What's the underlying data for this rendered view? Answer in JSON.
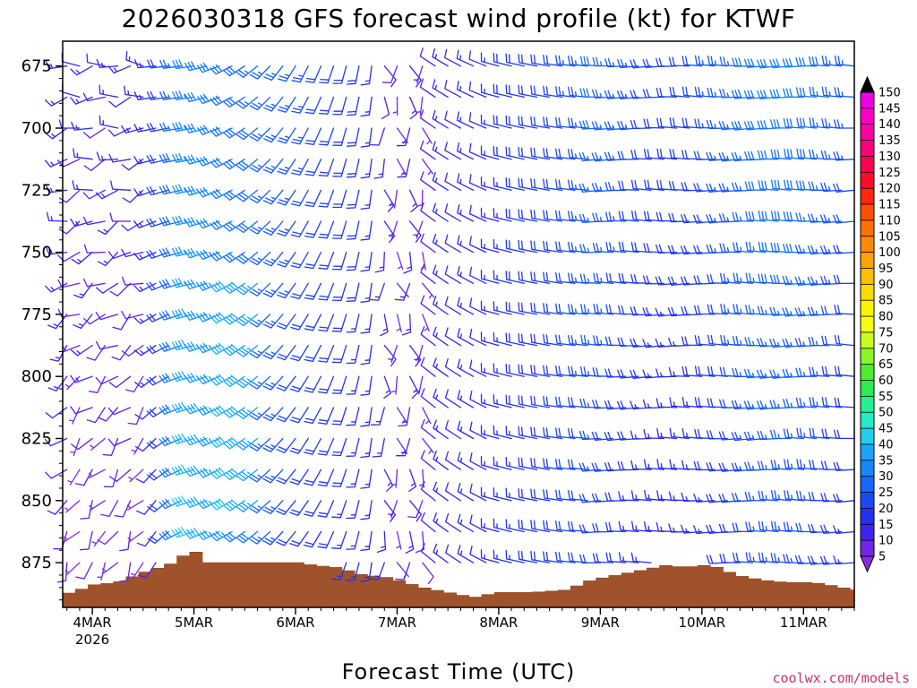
{
  "chart_data": {
    "type": "wind-barb-profile",
    "title": "2026030318 GFS forecast wind profile (kt) for KTWF",
    "xlabel": "Forecast Time (UTC)",
    "ylabel": "",
    "units": "kt",
    "credit": "coolwx.com/models",
    "ylim": [
      665,
      893
    ],
    "time_range_hours": [
      -1,
      186
    ],
    "y_ticks": [
      675,
      700,
      725,
      750,
      775,
      800,
      825,
      850,
      875
    ],
    "x_ticks": [
      {
        "hour": 6,
        "label": "4MAR",
        "sublabel": "2026"
      },
      {
        "hour": 30,
        "label": "5MAR"
      },
      {
        "hour": 54,
        "label": "6MAR"
      },
      {
        "hour": 78,
        "label": "7MAR"
      },
      {
        "hour": 102,
        "label": "8MAR"
      },
      {
        "hour": 126,
        "label": "9MAR"
      },
      {
        "hour": 150,
        "label": "10MAR"
      },
      {
        "hour": 174,
        "label": "11MAR"
      }
    ],
    "pressure_levels": [
      675,
      687.5,
      700,
      712.5,
      725,
      737.5,
      750,
      762.5,
      775,
      787.5,
      800,
      812.5,
      825,
      837.5,
      850,
      862.5,
      875,
      887.5
    ],
    "time_step_hours": 3,
    "wind_regimes": [
      {
        "period": "4MAR 00Z-12Z",
        "direction": "variable W/SW",
        "speed_kt": "5-15"
      },
      {
        "period": "4MAR 18Z-5MAR 06Z",
        "direction": "W",
        "speed_kt": "25-50"
      },
      {
        "period": "5MAR-6MAR",
        "direction": "SW to SSW",
        "speed_kt": "25-50"
      },
      {
        "period": "7MAR",
        "direction": "S, light",
        "speed_kt": "5-20"
      },
      {
        "period": "7MAR 12Z-8MAR",
        "direction": "NW to W",
        "speed_kt": "10-30"
      },
      {
        "period": "9MAR-11MAR",
        "direction": "W",
        "speed_kt": "20-40"
      }
    ],
    "colorbar": {
      "min": 5,
      "max": 150,
      "step": 5,
      "labels": [
        150,
        145,
        140,
        135,
        130,
        125,
        120,
        115,
        110,
        105,
        100,
        95,
        90,
        85,
        80,
        75,
        70,
        65,
        60,
        55,
        50,
        45,
        40,
        35,
        30,
        25,
        20,
        15,
        10,
        5
      ]
    },
    "terrain": [
      {
        "hour": -1,
        "p": 888
      },
      {
        "hour": 3,
        "p": 886
      },
      {
        "hour": 6,
        "p": 884
      },
      {
        "hour": 12,
        "p": 883
      },
      {
        "hour": 18,
        "p": 879
      },
      {
        "hour": 24,
        "p": 876
      },
      {
        "hour": 27,
        "p": 873
      },
      {
        "hour": 29,
        "p": 870
      },
      {
        "hour": 31,
        "p": 871
      },
      {
        "hour": 33,
        "p": 875
      },
      {
        "hour": 40,
        "p": 875
      },
      {
        "hour": 48,
        "p": 875
      },
      {
        "hour": 55,
        "p": 875
      },
      {
        "hour": 58,
        "p": 876
      },
      {
        "hour": 64,
        "p": 877
      },
      {
        "hour": 70,
        "p": 880
      },
      {
        "hour": 76,
        "p": 881
      },
      {
        "hour": 80,
        "p": 883
      },
      {
        "hour": 84,
        "p": 885
      },
      {
        "hour": 90,
        "p": 887
      },
      {
        "hour": 96,
        "p": 889
      },
      {
        "hour": 102,
        "p": 887
      },
      {
        "hour": 110,
        "p": 887
      },
      {
        "hour": 118,
        "p": 886
      },
      {
        "hour": 124,
        "p": 882
      },
      {
        "hour": 130,
        "p": 880
      },
      {
        "hour": 136,
        "p": 878
      },
      {
        "hour": 142,
        "p": 876
      },
      {
        "hour": 146,
        "p": 877
      },
      {
        "hour": 150,
        "p": 876
      },
      {
        "hour": 154,
        "p": 877
      },
      {
        "hour": 158,
        "p": 880
      },
      {
        "hour": 164,
        "p": 882
      },
      {
        "hour": 170,
        "p": 883
      },
      {
        "hour": 176,
        "p": 883
      },
      {
        "hour": 180,
        "p": 884
      },
      {
        "hour": 186,
        "p": 886
      }
    ]
  }
}
